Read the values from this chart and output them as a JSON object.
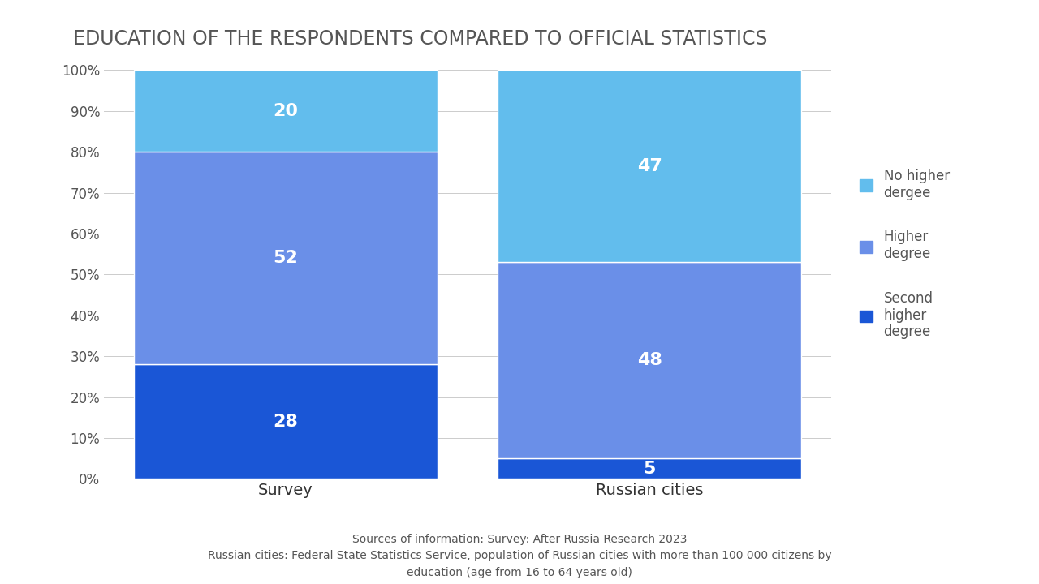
{
  "title": "EDUCATION OF THE RESPONDENTS COMPARED TO OFFICIAL STATISTICS",
  "categories": [
    "Survey",
    "Russian cities"
  ],
  "segments": {
    "Second higher degree": [
      28,
      5
    ],
    "Higher degree": [
      52,
      48
    ],
    "No higher dergee": [
      20,
      47
    ]
  },
  "colors": {
    "Second higher degree": "#1A56D6",
    "Higher degree": "#6A8FE8",
    "No higher dergee": "#62BDED"
  },
  "text_color": "#FFFFFF",
  "label_fontsize": 16,
  "title_fontsize": 17,
  "yticks": [
    0,
    10,
    20,
    30,
    40,
    50,
    60,
    70,
    80,
    90,
    100
  ],
  "ytick_labels": [
    "0%",
    "10%",
    "20%",
    "30%",
    "40%",
    "50%",
    "60%",
    "70%",
    "80%",
    "90%",
    "100%"
  ],
  "footnote_line1": "Sources of information: Survey: After Russia Research 2023",
  "footnote_line2": "Russian cities: Federal State Statistics Service, population of Russian cities with more than 100 000 citizens by",
  "footnote_line3": "education (age from 16 to 64 years old)",
  "background_color": "#FFFFFF",
  "legend_labels": [
    "No higher\ndergee",
    "Higher\ndegree",
    "Second\nhigher\ndegree"
  ],
  "legend_colors": [
    "#62BDED",
    "#6A8FE8",
    "#1A56D6"
  ],
  "bar_width": 0.5
}
